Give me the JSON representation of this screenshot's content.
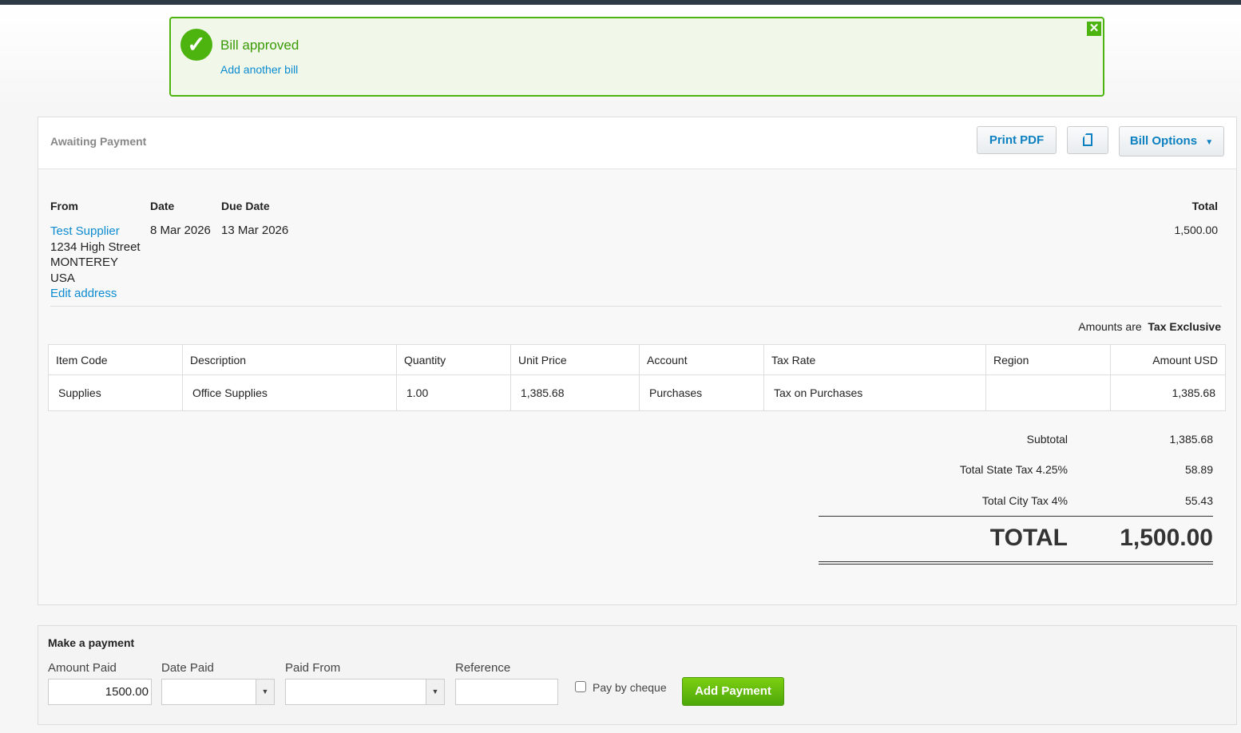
{
  "alert": {
    "title": "Bill approved",
    "link": "Add another bill"
  },
  "header": {
    "status": "Awaiting Payment",
    "print_pdf": "Print PDF",
    "bill_options": "Bill Options"
  },
  "bill": {
    "from_label": "From",
    "date_label": "Date",
    "due_label": "Due Date",
    "total_label": "Total",
    "supplier": "Test Supplier",
    "address": [
      "1234 High Street",
      "MONTEREY",
      "USA"
    ],
    "edit_address": "Edit address",
    "date": "8 Mar 2026",
    "due": "13 Mar 2026",
    "total": "1,500.00",
    "amounts_are": "Amounts are",
    "tax_mode": "Tax Exclusive"
  },
  "table": {
    "headers": [
      "Item Code",
      "Description",
      "Quantity",
      "Unit Price",
      "Account",
      "Tax Rate",
      "Region",
      "Amount USD"
    ],
    "rows": [
      [
        "Supplies",
        "Office Supplies",
        "1.00",
        "1,385.68",
        "Purchases",
        "Tax on Purchases",
        "",
        "1,385.68"
      ]
    ]
  },
  "summary": {
    "subtotal_label": "Subtotal",
    "subtotal": "1,385.68",
    "state_label": "Total State Tax 4.25%",
    "state": "58.89",
    "city_label": "Total City Tax 4%",
    "city": "55.43",
    "total_label": "TOTAL",
    "total": "1,500.00"
  },
  "payment": {
    "title": "Make a payment",
    "amount_label": "Amount Paid",
    "amount": "1500.00",
    "date_label": "Date Paid",
    "from_label": "Paid From",
    "ref_label": "Reference",
    "cheque_label": "Pay by cheque",
    "add_label": "Add Payment"
  },
  "colors": {
    "accent": "#0c8bd0",
    "success": "#4cb30f"
  }
}
